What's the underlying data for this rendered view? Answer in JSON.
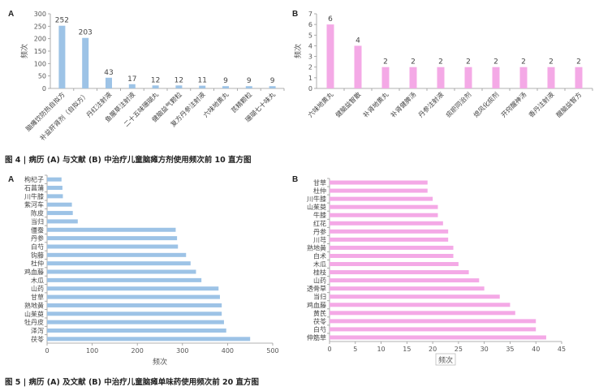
{
  "figure4": {
    "caption": "图 4 | 病历 (A) 与文献 (B) 中治疗儿童脑瘫方剂使用频次前 10 直方图",
    "panels": [
      {
        "label": "A",
        "chart_data": {
          "type": "bar",
          "orientation": "vertical",
          "categories": [
            "脑瘫饮防热自拟方",
            "补益肝肾剂（自拟方）",
            "丹红注射液",
            "鱼腥草注射液",
            "二十五味珊瑚丸",
            "健脑益气颗粒",
            "复方丹参注射液",
            "六味地黄丸",
            "芪精颗粒",
            "珊瑚七十味丸"
          ],
          "values": [
            252,
            203,
            43,
            17,
            12,
            12,
            11,
            9,
            9,
            9
          ],
          "ylabel": "频次",
          "ylim": [
            0,
            300
          ],
          "yticks": [
            0,
            50,
            100,
            150,
            200,
            250,
            300
          ],
          "color": "#9dc3e6",
          "grid": false
        }
      },
      {
        "label": "B",
        "chart_data": {
          "type": "bar",
          "orientation": "vertical",
          "categories": [
            "六味地黄丸",
            "健脑益智散",
            "补肾地黄丸",
            "补肾健脾汤",
            "丹参注射液",
            "痰瘀同治剂",
            "熄风化痰剂",
            "开窍醒神汤",
            "香丹注射液",
            "醒脑益智方"
          ],
          "values": [
            6,
            4,
            2,
            2,
            2,
            2,
            2,
            2,
            2,
            2
          ],
          "ylabel": "频次",
          "ylim": [
            0,
            7
          ],
          "yticks": [
            0,
            1,
            2,
            3,
            4,
            5,
            6,
            7
          ],
          "color": "#f4a9e6",
          "grid": false
        }
      }
    ]
  },
  "figure5": {
    "caption": "图 5 | 病历 (A) 及文献 (B) 中治疗儿童脑瘫单味药使用频次前 20 直方图",
    "panels": [
      {
        "label": "A",
        "chart_data": {
          "type": "bar",
          "orientation": "horizontal",
          "categories": [
            "枸杞子",
            "石菖蒲",
            "川牛膝",
            "紫河车",
            "陈皮",
            "当归",
            "僵蚕",
            "丹参",
            "白芍",
            "钩藤",
            "杜仲",
            "鸡血藤",
            "木瓜",
            "山药",
            "甘草",
            "熟地黄",
            "山茱萸",
            "牡丹皮",
            "泽泻",
            "茯苓"
          ],
          "values": [
            32,
            34,
            35,
            55,
            57,
            68,
            285,
            288,
            290,
            308,
            318,
            330,
            342,
            380,
            383,
            387,
            387,
            392,
            397,
            450
          ],
          "xlabel": "频次",
          "xlim": [
            0,
            500
          ],
          "xticks": [
            0,
            100,
            200,
            300,
            400,
            500
          ],
          "color": "#9dc3e6",
          "grid": false
        }
      },
      {
        "label": "B",
        "chart_data": {
          "type": "bar",
          "orientation": "horizontal",
          "categories": [
            "甘草",
            "杜仲",
            "川牛膝",
            "山茱萸",
            "牛膝",
            "红花",
            "丹参",
            "川芎",
            "熟地黄",
            "白术",
            "木瓜",
            "桂枝",
            "山药",
            "透骨草",
            "当归",
            "鸡血藤",
            "黄芪",
            "茯苓",
            "白芍",
            "伸筋草"
          ],
          "values": [
            19,
            19,
            20,
            21,
            21,
            22,
            23,
            23,
            24,
            24,
            25,
            27,
            29,
            30,
            33,
            35,
            36,
            40,
            40,
            42
          ],
          "xlabel": "频次",
          "xlim": [
            0,
            45
          ],
          "xticks": [
            0,
            5,
            10,
            15,
            20,
            25,
            30,
            35,
            40,
            45
          ],
          "color": "#f4a9e6",
          "grid": false
        }
      }
    ]
  }
}
